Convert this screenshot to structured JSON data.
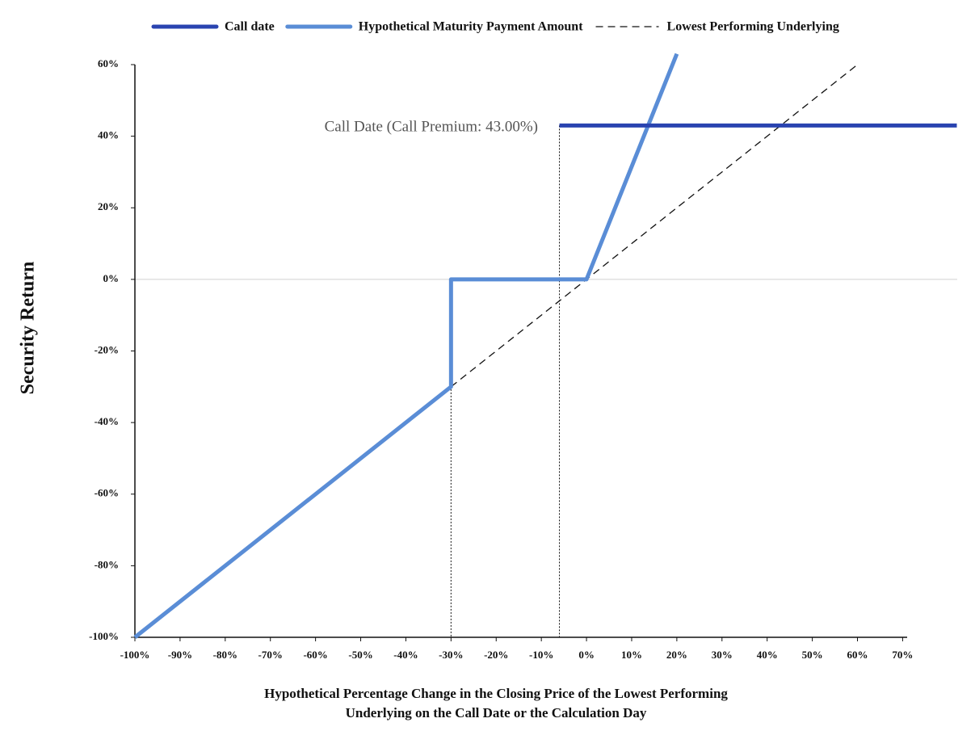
{
  "chart_data": {
    "type": "line",
    "x_label": [
      "Hypothetical Percentage Change in the Closing Price of the Lowest Performing",
      "Underlying on the Call Date or the Calculation Day"
    ],
    "y_label": "Security Return",
    "annotation": "Call Date (Call Premium: 43.00%)",
    "xlim": [
      -100,
      71
    ],
    "ylim": [
      -100,
      60
    ],
    "xticks": [
      {
        "value": -100,
        "label": "-100%"
      },
      {
        "value": -90,
        "label": "-90%"
      },
      {
        "value": -80,
        "label": "-80%"
      },
      {
        "value": -70,
        "label": "-70%"
      },
      {
        "value": -60,
        "label": "-60%"
      },
      {
        "value": -50,
        "label": "-50%"
      },
      {
        "value": -40,
        "label": "-40%"
      },
      {
        "value": -30,
        "label": "-30%"
      },
      {
        "value": -20,
        "label": "-20%"
      },
      {
        "value": -10,
        "label": "-10%"
      },
      {
        "value": 0,
        "label": "0%"
      },
      {
        "value": 10,
        "label": "10%"
      },
      {
        "value": 20,
        "label": "20%"
      },
      {
        "value": 30,
        "label": "30%"
      },
      {
        "value": 40,
        "label": "40%"
      },
      {
        "value": 50,
        "label": "50%"
      },
      {
        "value": 60,
        "label": "60%"
      },
      {
        "value": 70,
        "label": "70%"
      }
    ],
    "yticks": [
      {
        "value": -100,
        "label": "-100%"
      },
      {
        "value": -80,
        "label": "-80%"
      },
      {
        "value": -60,
        "label": "-60%"
      },
      {
        "value": -40,
        "label": "-40%"
      },
      {
        "value": -20,
        "label": "-20%"
      },
      {
        "value": 0,
        "label": "0%"
      },
      {
        "value": 20,
        "label": "20%"
      },
      {
        "value": 40,
        "label": "40%"
      },
      {
        "value": 60,
        "label": "60%"
      }
    ],
    "zero_line": true,
    "series": [
      {
        "name": "Call date",
        "color": "#2a44b0",
        "dash": false,
        "x": [
          -6,
          82
        ],
        "values": [
          43,
          43
        ]
      },
      {
        "name": "Hypothetical Maturity Payment Amount",
        "color": "#5a8dd6",
        "dash": false,
        "x": [
          -100,
          -30,
          -30,
          0,
          20
        ],
        "values": [
          -100,
          -30,
          0,
          0,
          63
        ]
      },
      {
        "name": "Lowest Performing Underlying",
        "color": "#111111",
        "dash": true,
        "x": [
          -30,
          60
        ],
        "values": [
          -30,
          60
        ]
      }
    ],
    "reference_lines": [
      {
        "x": -30,
        "y": 0
      },
      {
        "x": -6,
        "y": 43
      }
    ]
  }
}
